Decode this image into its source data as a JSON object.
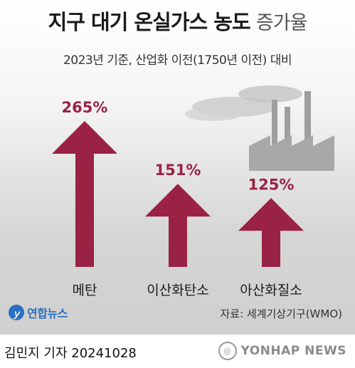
{
  "header": {
    "title_bold": "지구 대기 온실가스 농도",
    "title_light": "증가율",
    "subtitle": "2023년 기준, 산업화 이전(1750년 이전) 대비"
  },
  "chart_data": {
    "type": "bar",
    "categories": [
      "메탄",
      "이산화탄소",
      "아산화질소"
    ],
    "values": [
      265,
      151,
      125
    ],
    "value_labels": [
      "265%",
      "151%",
      "125%"
    ],
    "title": "지구 대기 온실가스 농도 증가율",
    "subtitle": "2023년 기준, 산업화 이전(1750년 이전) 대비",
    "bar_style": "arrow",
    "colors": {
      "arrow": "#9a2245",
      "value_text": "#9a2245"
    }
  },
  "source": "자료: 세계기상기구(WMO)",
  "logo": {
    "text": "연합뉴스"
  },
  "footer": {
    "credit": "김민지 기자  20241028",
    "watermark": "YONHAP NEWS"
  }
}
